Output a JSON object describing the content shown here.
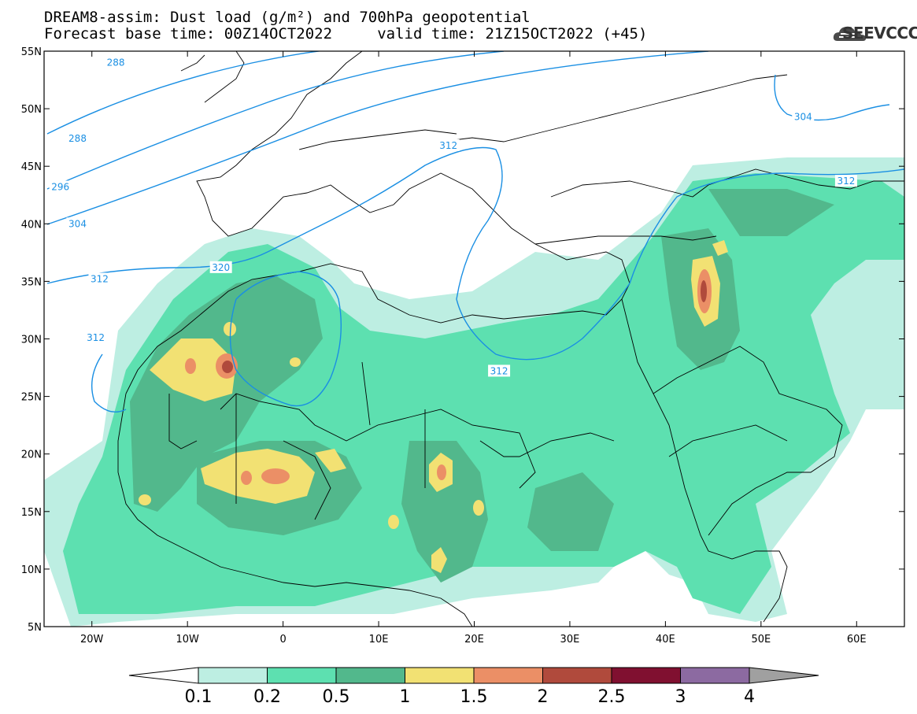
{
  "header": {
    "title_line1": "DREAM8-assim: Dust load (g/m²) and 700hPa geopotential",
    "title_line2": "Forecast base time: 00Z14OCT2022     valid time: 21Z15OCT2022 (+45)",
    "logo_text": "SEEVCCC"
  },
  "map": {
    "lon_range": [
      -25,
      65
    ],
    "lat_range": [
      5,
      55
    ],
    "lat_ticks": [
      {
        "value": 55,
        "label": "55N"
      },
      {
        "value": 50,
        "label": "50N"
      },
      {
        "value": 45,
        "label": "45N"
      },
      {
        "value": 40,
        "label": "40N"
      },
      {
        "value": 35,
        "label": "35N"
      },
      {
        "value": 30,
        "label": "30N"
      },
      {
        "value": 25,
        "label": "25N"
      },
      {
        "value": 20,
        "label": "20N"
      },
      {
        "value": 15,
        "label": "15N"
      },
      {
        "value": 10,
        "label": "10N"
      },
      {
        "value": 5,
        "label": "5N"
      }
    ],
    "lon_ticks": [
      {
        "value": -20,
        "label": "20W"
      },
      {
        "value": -10,
        "label": "10W"
      },
      {
        "value": 0,
        "label": "0"
      },
      {
        "value": 10,
        "label": "10E"
      },
      {
        "value": 20,
        "label": "20E"
      },
      {
        "value": 30,
        "label": "30E"
      },
      {
        "value": 40,
        "label": "40E"
      },
      {
        "value": 50,
        "label": "50E"
      },
      {
        "value": 60,
        "label": "60E"
      }
    ],
    "contour_labels": [
      {
        "text": "288",
        "lon": -21.5,
        "lat": 47.4
      },
      {
        "text": "288",
        "lon": -17.5,
        "lat": 54.0
      },
      {
        "text": "296",
        "lon": -23.3,
        "lat": 43.2
      },
      {
        "text": "304",
        "lon": -21.5,
        "lat": 40.0
      },
      {
        "text": "312",
        "lon": -19.2,
        "lat": 35.2
      },
      {
        "text": "312",
        "lon": -19.6,
        "lat": 30.1
      },
      {
        "text": "320",
        "lon": -6.5,
        "lat": 36.2
      },
      {
        "text": "312",
        "lon": 17.3,
        "lat": 46.8
      },
      {
        "text": "312",
        "lon": 22.6,
        "lat": 27.2
      },
      {
        "text": "304",
        "lon": 54.4,
        "lat": 49.3
      },
      {
        "text": "312",
        "lon": 58.9,
        "lat": 43.7
      }
    ]
  },
  "colorbar": {
    "levels": [
      "0.1",
      "0.2",
      "0.5",
      "1",
      "1.5",
      "2",
      "2.5",
      "3",
      "4"
    ],
    "colors": [
      "#ffffff",
      "#bdeee2",
      "#5de0b0",
      "#52b88c",
      "#f2e173",
      "#eb8f66",
      "#b04a3c",
      "#801030",
      "#8c6aa1",
      "#a0a0a0"
    ]
  },
  "colors": {
    "contour": "#1a8fe3",
    "coast": "#000000"
  }
}
